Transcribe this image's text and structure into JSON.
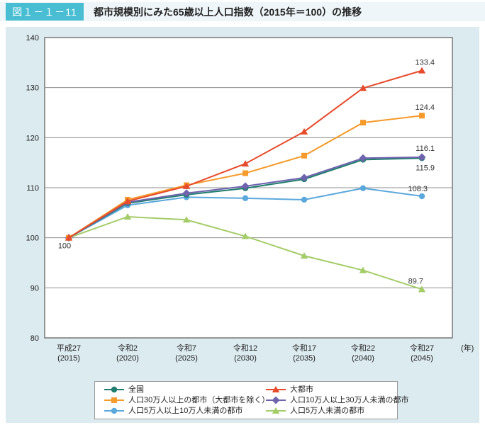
{
  "header": {
    "figure_label": "図１－１－11",
    "title": "都市規模別にみた65歳以上人口指数（2015年＝100）の推移"
  },
  "chart_data": {
    "type": "line",
    "title": "都市規模別にみた65歳以上人口指数（2015年＝100）の推移",
    "x": [
      2015,
      2020,
      2025,
      2030,
      2035,
      2040,
      2045
    ],
    "x_tick_labels": [
      {
        "era": "平成27",
        "year": "(2015)"
      },
      {
        "era": "令和2",
        "year": "(2020)"
      },
      {
        "era": "令和7",
        "year": "(2025)"
      },
      {
        "era": "令和12",
        "year": "(2030)"
      },
      {
        "era": "令和17",
        "year": "(2035)"
      },
      {
        "era": "令和22",
        "year": "(2040)"
      },
      {
        "era": "令和27",
        "year": "(2045)"
      }
    ],
    "x_axis_unit": "(年)",
    "ylim": [
      80,
      140
    ],
    "yticks": [
      140,
      130,
      120,
      110,
      100,
      90,
      80
    ],
    "grid": true,
    "legend_position": "bottom",
    "start_annotation": "100",
    "series": [
      {
        "name": "全国",
        "color": "#1f7e6e",
        "marker": "circle",
        "values": [
          100,
          106.9,
          108.6,
          109.9,
          111.7,
          115.6,
          115.9
        ],
        "end_label": "115.9"
      },
      {
        "name": "大都市",
        "color": "#e64b2b",
        "marker": "triangle",
        "values": [
          100,
          107.3,
          110.3,
          114.8,
          121.2,
          129.9,
          133.4
        ],
        "end_label": "133.4"
      },
      {
        "name": "人口30万人以上の都市（大都市を除く）",
        "color": "#f49b2c",
        "marker": "square",
        "values": [
          100,
          107.6,
          110.5,
          112.9,
          116.4,
          123.0,
          124.4
        ],
        "end_label": "124.4"
      },
      {
        "name": "人口10万人以上30万人未満の都市",
        "color": "#6f63ad",
        "marker": "diamond",
        "values": [
          100,
          107.1,
          108.9,
          110.3,
          112.0,
          115.9,
          116.1
        ],
        "end_label": "116.1"
      },
      {
        "name": "人口5万人以上10万人未満の都市",
        "color": "#5ba8dc",
        "marker": "circle",
        "values": [
          100,
          106.5,
          108.1,
          107.9,
          107.6,
          109.9,
          108.3
        ],
        "end_label": "108.3"
      },
      {
        "name": "人口5万人未満の都市",
        "color": "#a4cc68",
        "marker": "triangle",
        "values": [
          100,
          104.2,
          103.6,
          100.3,
          96.4,
          93.5,
          89.7
        ],
        "end_label": "89.7"
      }
    ],
    "colors": {
      "grid_line": "#8f8f8f",
      "plot_border": "#777777",
      "panel_background": "#dcebf0",
      "badge_background": "#49bed2",
      "axis_text": "#222222"
    }
  }
}
